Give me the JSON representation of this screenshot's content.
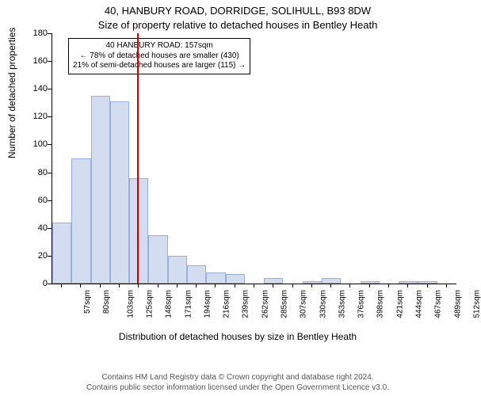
{
  "chart": {
    "type": "histogram",
    "title": "40, HANBURY ROAD, DORRIDGE, SOLIHULL, B93 8DW",
    "subtitle": "Size of property relative to detached houses in Bentley Heath",
    "ylabel": "Number of detached properties",
    "xlabel": "Distribution of detached houses by size in Bentley Heath",
    "ylim": [
      0,
      180
    ],
    "ytick_step": 20,
    "yticks": [
      0,
      20,
      40,
      60,
      80,
      100,
      120,
      140,
      160,
      180
    ],
    "xticks": [
      "57sqm",
      "80sqm",
      "103sqm",
      "125sqm",
      "148sqm",
      "171sqm",
      "194sqm",
      "216sqm",
      "239sqm",
      "262sqm",
      "285sqm",
      "307sqm",
      "330sqm",
      "353sqm",
      "376sqm",
      "398sqm",
      "421sqm",
      "444sqm",
      "467sqm",
      "489sqm",
      "512sqm"
    ],
    "values": [
      44,
      90,
      135,
      131,
      76,
      35,
      20,
      13,
      8,
      7,
      0,
      4,
      0,
      2,
      4,
      0,
      2,
      0,
      2,
      2,
      0
    ],
    "bar_fill": "#d4ddf0",
    "bar_border": "#9aaedb",
    "axis_color": "#000000",
    "ref_line": {
      "x_index": 4.4,
      "color": "#cc0000"
    },
    "annotation": {
      "lines": [
        "40 HANBURY ROAD: 157sqm",
        "← 78% of detached houses are smaller (430)",
        "21% of semi-detached houses are larger (115) →"
      ]
    },
    "footer": {
      "line1": "Contains HM Land Registry data © Crown copyright and database right 2024.",
      "line2": "Contains public sector information licensed under the Open Government Licence v3.0."
    },
    "background_color": "#ffffff",
    "title_fontsize": 13,
    "label_fontsize": 12,
    "tick_fontsize": 11,
    "footer_color": "#555555"
  }
}
